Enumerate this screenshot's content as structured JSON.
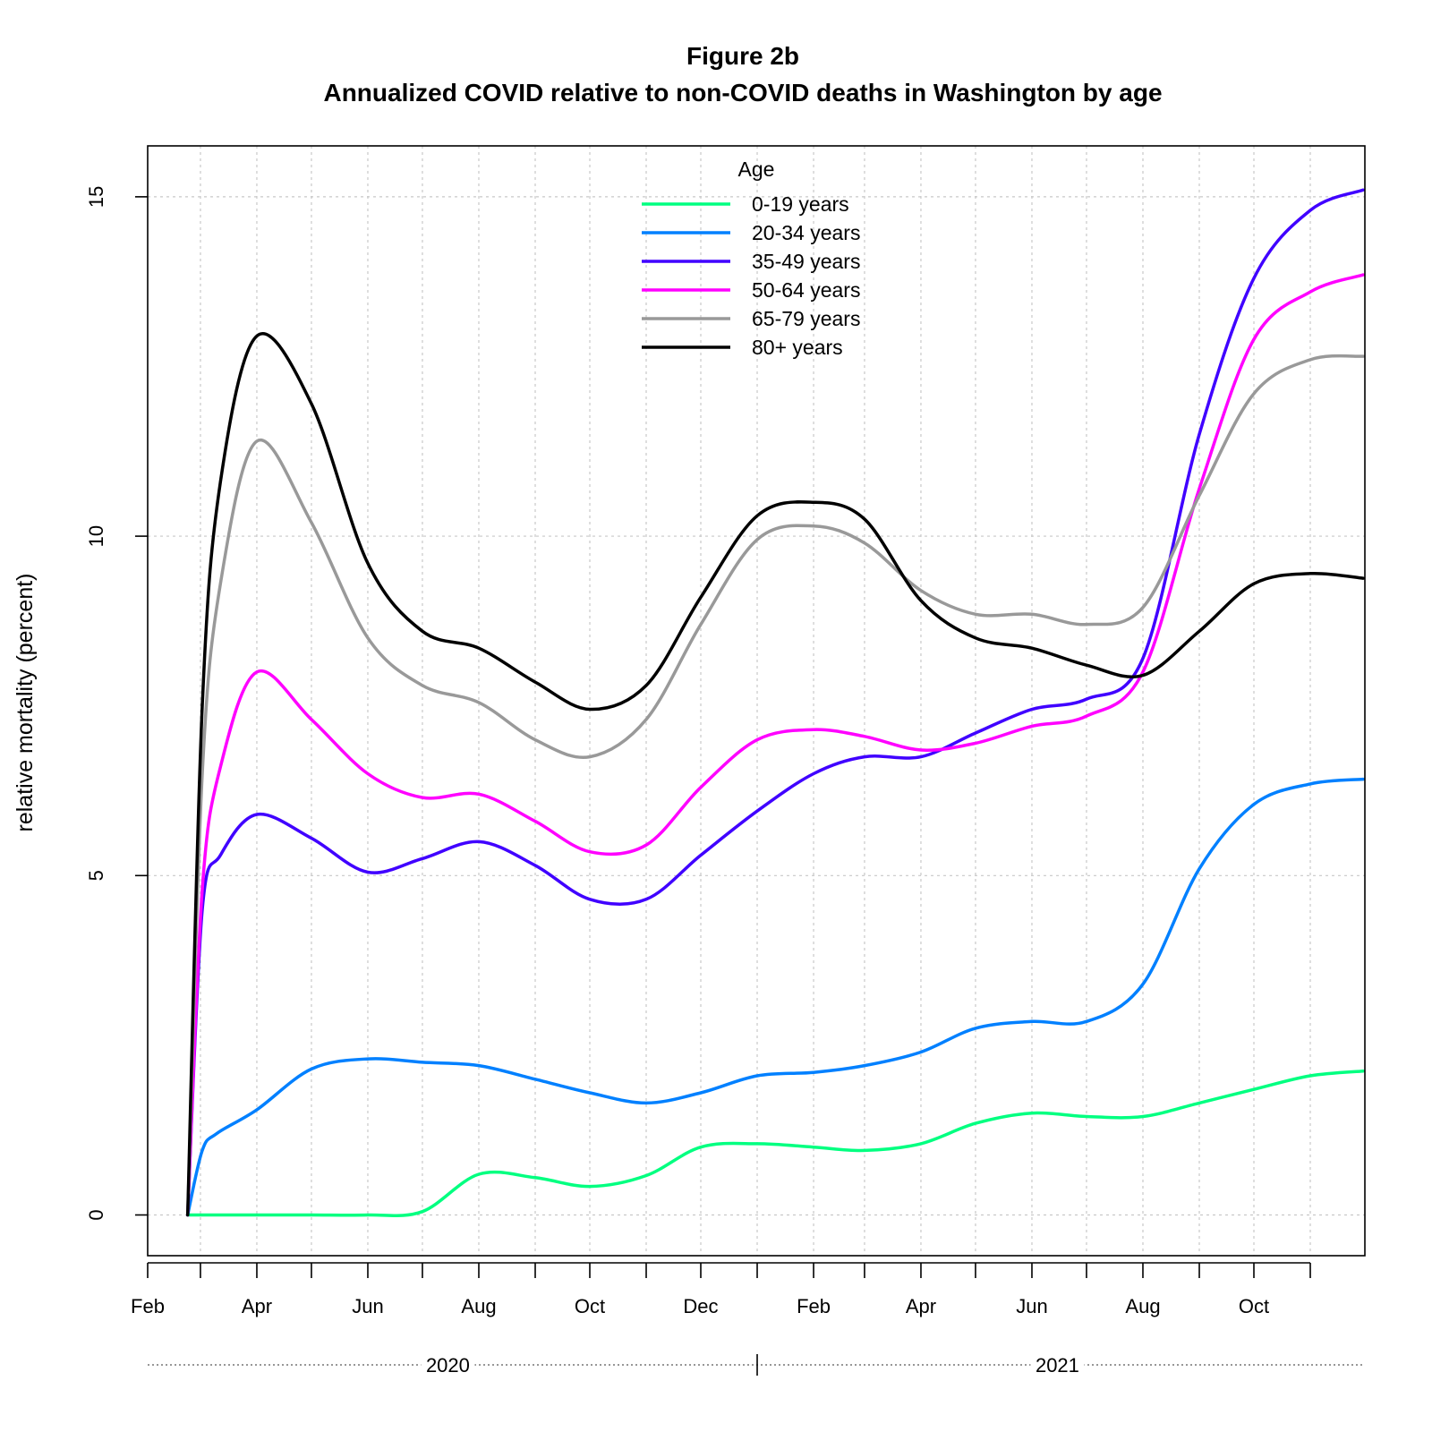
{
  "chart_data": {
    "type": "line",
    "title": "Figure 2b",
    "subtitle": "Annualized COVID relative to non-COVID deaths in Washington by age",
    "xlabel": "",
    "ylabel": "relative mortality (percent)",
    "xlim": [
      "2020-02-01",
      "2021-12-01"
    ],
    "ylim": [
      -0.6,
      15.75
    ],
    "x_ticks": [
      {
        "date": "2020-02-01",
        "label": "Feb"
      },
      {
        "date": "2020-03-01",
        "label": ""
      },
      {
        "date": "2020-04-01",
        "label": "Apr"
      },
      {
        "date": "2020-05-01",
        "label": ""
      },
      {
        "date": "2020-06-01",
        "label": "Jun"
      },
      {
        "date": "2020-07-01",
        "label": ""
      },
      {
        "date": "2020-08-01",
        "label": "Aug"
      },
      {
        "date": "2020-09-01",
        "label": ""
      },
      {
        "date": "2020-10-01",
        "label": "Oct"
      },
      {
        "date": "2020-11-01",
        "label": ""
      },
      {
        "date": "2020-12-01",
        "label": "Dec"
      },
      {
        "date": "2021-01-01",
        "label": ""
      },
      {
        "date": "2021-02-01",
        "label": "Feb"
      },
      {
        "date": "2021-03-01",
        "label": ""
      },
      {
        "date": "2021-04-01",
        "label": "Apr"
      },
      {
        "date": "2021-05-01",
        "label": ""
      },
      {
        "date": "2021-06-01",
        "label": "Jun"
      },
      {
        "date": "2021-07-01",
        "label": ""
      },
      {
        "date": "2021-08-01",
        "label": "Aug"
      },
      {
        "date": "2021-09-01",
        "label": ""
      },
      {
        "date": "2021-10-01",
        "label": "Oct"
      },
      {
        "date": "2021-11-01",
        "label": ""
      }
    ],
    "year_labels": [
      {
        "label": "2020",
        "center": "2020-07-15"
      },
      {
        "label": "2021",
        "center": "2021-06-15"
      }
    ],
    "year_divider": "2021-01-01",
    "y_ticks": [
      0,
      5,
      10,
      15
    ],
    "grid": true,
    "legend": {
      "title": "Age",
      "position": "top-center"
    },
    "series": [
      {
        "name": "0-19 years",
        "color": "#00FF80",
        "x": [
          "2020-02-23",
          "2020-03-01",
          "2020-04-01",
          "2020-05-01",
          "2020-06-01",
          "2020-07-01",
          "2020-08-01",
          "2020-09-01",
          "2020-10-01",
          "2020-11-01",
          "2020-12-01",
          "2021-01-01",
          "2021-02-01",
          "2021-03-01",
          "2021-04-01",
          "2021-05-01",
          "2021-06-01",
          "2021-07-01",
          "2021-08-01",
          "2021-09-01",
          "2021-10-01",
          "2021-11-01",
          "2021-11-30"
        ],
        "y": [
          0,
          0,
          0,
          0,
          0,
          0.05,
          0.6,
          0.55,
          0.42,
          0.58,
          1.0,
          1.05,
          1.0,
          0.95,
          1.05,
          1.35,
          1.5,
          1.45,
          1.45,
          1.65,
          1.85,
          2.05,
          2.12
        ]
      },
      {
        "name": "20-34 years",
        "color": "#0080FF",
        "x": [
          "2020-02-23",
          "2020-03-02",
          "2020-03-10",
          "2020-04-01",
          "2020-05-01",
          "2020-06-01",
          "2020-07-01",
          "2020-08-01",
          "2020-09-01",
          "2020-10-01",
          "2020-11-01",
          "2020-12-01",
          "2021-01-01",
          "2021-02-01",
          "2021-03-01",
          "2021-04-01",
          "2021-05-01",
          "2021-06-01",
          "2021-07-01",
          "2021-08-01",
          "2021-09-01",
          "2021-10-01",
          "2021-11-01",
          "2021-11-30"
        ],
        "y": [
          0,
          0.95,
          1.2,
          1.55,
          2.15,
          2.3,
          2.25,
          2.2,
          2.0,
          1.8,
          1.65,
          1.8,
          2.05,
          2.1,
          2.2,
          2.4,
          2.75,
          2.85,
          2.85,
          3.4,
          5.1,
          6.05,
          6.35,
          6.42
        ]
      },
      {
        "name": "35-49 years",
        "color": "#4000FF",
        "x": [
          "2020-02-23",
          "2020-03-02",
          "2020-03-12",
          "2020-04-01",
          "2020-05-01",
          "2020-06-01",
          "2020-07-01",
          "2020-08-01",
          "2020-09-01",
          "2020-10-01",
          "2020-11-01",
          "2020-12-01",
          "2021-01-01",
          "2021-02-01",
          "2021-03-01",
          "2021-04-01",
          "2021-05-01",
          "2021-06-01",
          "2021-07-01",
          "2021-08-01",
          "2021-09-01",
          "2021-10-01",
          "2021-11-01",
          "2021-11-30"
        ],
        "y": [
          0,
          4.5,
          5.3,
          5.9,
          5.55,
          5.05,
          5.25,
          5.5,
          5.15,
          4.65,
          4.65,
          5.3,
          5.95,
          6.5,
          6.75,
          6.75,
          7.1,
          7.45,
          7.6,
          8.2,
          11.5,
          13.8,
          14.8,
          15.1
        ]
      },
      {
        "name": "50-64 years",
        "color": "#FF00FF",
        "x": [
          "2020-02-23",
          "2020-03-02",
          "2020-03-12",
          "2020-04-01",
          "2020-05-01",
          "2020-06-01",
          "2020-07-01",
          "2020-08-01",
          "2020-09-01",
          "2020-10-01",
          "2020-11-01",
          "2020-12-01",
          "2021-01-01",
          "2021-02-01",
          "2021-03-01",
          "2021-04-01",
          "2021-05-01",
          "2021-06-01",
          "2021-07-01",
          "2021-08-01",
          "2021-09-01",
          "2021-10-01",
          "2021-11-01",
          "2021-11-30"
        ],
        "y": [
          0,
          4.8,
          6.6,
          8.0,
          7.3,
          6.5,
          6.15,
          6.2,
          5.8,
          5.35,
          5.45,
          6.3,
          7.0,
          7.15,
          7.05,
          6.85,
          6.95,
          7.2,
          7.35,
          8.0,
          10.7,
          12.9,
          13.6,
          13.85
        ]
      },
      {
        "name": "65-79 years",
        "color": "#999999",
        "x": [
          "2020-02-23",
          "2020-03-02",
          "2020-03-12",
          "2020-04-01",
          "2020-05-01",
          "2020-06-01",
          "2020-07-01",
          "2020-08-01",
          "2020-09-01",
          "2020-10-01",
          "2020-11-01",
          "2020-12-01",
          "2021-01-01",
          "2021-02-01",
          "2021-03-01",
          "2021-04-01",
          "2021-05-01",
          "2021-06-01",
          "2021-07-01",
          "2021-08-01",
          "2021-09-01",
          "2021-10-01",
          "2021-11-01",
          "2021-11-30"
        ],
        "y": [
          0,
          6.5,
          9.3,
          11.4,
          10.2,
          8.5,
          7.8,
          7.55,
          7.0,
          6.75,
          7.3,
          8.7,
          9.95,
          10.15,
          9.9,
          9.2,
          8.85,
          8.85,
          8.7,
          8.95,
          10.6,
          12.1,
          12.6,
          12.65
        ]
      },
      {
        "name": "80+ years",
        "color": "#000000",
        "x": [
          "2020-02-23",
          "2020-03-02",
          "2020-03-12",
          "2020-04-01",
          "2020-05-01",
          "2020-06-01",
          "2020-07-01",
          "2020-08-01",
          "2020-09-01",
          "2020-10-01",
          "2020-11-01",
          "2020-12-01",
          "2021-01-01",
          "2021-02-01",
          "2021-03-01",
          "2021-04-01",
          "2021-05-01",
          "2021-06-01",
          "2021-07-01",
          "2021-08-01",
          "2021-09-01",
          "2021-10-01",
          "2021-11-01",
          "2021-11-30"
        ],
        "y": [
          0,
          7.5,
          10.8,
          12.95,
          11.95,
          9.6,
          8.6,
          8.35,
          7.85,
          7.45,
          7.8,
          9.1,
          10.3,
          10.5,
          10.25,
          9.05,
          8.5,
          8.35,
          8.1,
          7.95,
          8.6,
          9.3,
          9.45,
          9.38
        ]
      }
    ]
  }
}
